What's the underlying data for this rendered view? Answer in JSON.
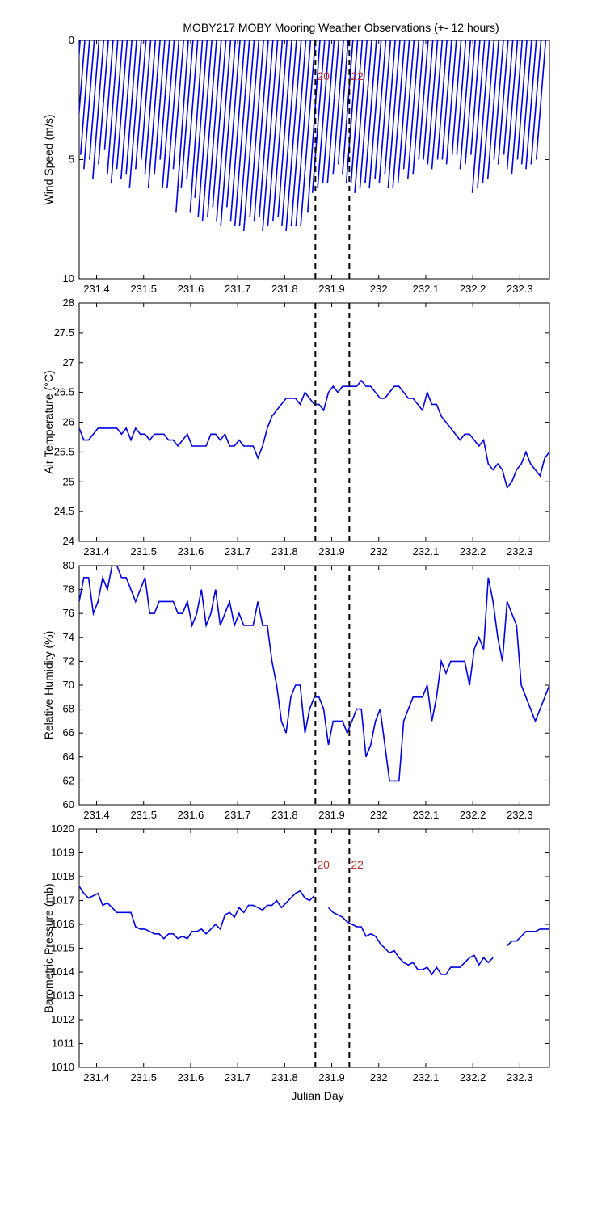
{
  "title": "MOBY217 MOBY Mooring Weather Observations (+- 12 hours)",
  "xlabel": "Julian Day",
  "x_ticks": [
    "231.4",
    "231.5",
    "231.6",
    "231.7",
    "231.8",
    "231.9",
    "232",
    "232.1",
    "232.2",
    "232.3"
  ],
  "x_tick_values": [
    231.4,
    231.5,
    231.6,
    231.7,
    231.8,
    231.9,
    232.0,
    232.1,
    232.2,
    232.3
  ],
  "xlim": [
    231.363,
    232.363
  ],
  "markers": [
    {
      "x": 231.8653,
      "label": "20"
    },
    {
      "x": 231.9375,
      "label": "22"
    }
  ],
  "colors": {
    "series": "#0000e0",
    "marker_line": "#000000",
    "marker_label": "#c03030"
  },
  "chart_data": [
    {
      "type": "line",
      "id": "wind",
      "subtype": "wind-vector-sticks",
      "ylabel": "Wind Speed (m/s)",
      "ylim": [
        0,
        10
      ],
      "y_reversed": true,
      "y_ticks": [
        0,
        5,
        10
      ],
      "x": [
        231.365,
        231.375,
        231.385,
        231.395,
        231.405,
        231.415,
        231.425,
        231.435,
        231.445,
        231.455,
        231.465,
        231.475,
        231.485,
        231.495,
        231.505,
        231.515,
        231.525,
        231.535,
        231.545,
        231.555,
        231.565,
        231.575,
        231.585,
        231.595,
        231.605,
        231.615,
        231.625,
        231.635,
        231.645,
        231.655,
        231.665,
        231.675,
        231.685,
        231.695,
        231.705,
        231.715,
        231.725,
        231.735,
        231.745,
        231.755,
        231.765,
        231.775,
        231.785,
        231.795,
        231.805,
        231.815,
        231.825,
        231.835,
        231.845,
        231.855,
        231.865,
        231.875,
        231.885,
        231.895,
        231.905,
        231.915,
        231.925,
        231.935,
        231.945,
        231.955,
        231.965,
        231.975,
        231.985,
        231.995,
        232.005,
        232.015,
        232.025,
        232.035,
        232.045,
        232.055,
        232.065,
        232.075,
        232.085,
        232.095,
        232.105,
        232.115,
        232.125,
        232.135,
        232.145,
        232.155,
        232.165,
        232.175,
        232.185,
        232.195,
        232.205,
        232.215,
        232.225,
        232.235,
        232.245,
        232.255,
        232.265,
        232.275,
        232.285,
        232.295,
        232.305,
        232.315,
        232.325,
        232.335,
        232.345,
        232.355
      ],
      "speed": [
        5.6,
        5.2,
        4.8,
        5.4,
        5.0,
        5.8,
        5.2,
        4.6,
        5.6,
        6.0,
        5.4,
        5.8,
        5.6,
        6.2,
        5.4,
        5.0,
        5.6,
        6.2,
        5.6,
        5.0,
        6.2,
        6.2,
        5.4,
        7.2,
        6.2,
        5.8,
        7.2,
        6.6,
        7.4,
        7.6,
        7.4,
        7.0,
        7.6,
        7.8,
        7.0,
        7.6,
        7.8,
        7.8,
        8.0,
        7.4,
        7.6,
        7.4,
        8.0,
        7.8,
        7.6,
        7.4,
        7.8,
        8.0,
        7.8,
        7.8,
        7.8,
        7.2,
        6.4,
        6.2,
        6.0,
        6.0,
        5.6,
        5.2,
        5.6,
        6.0,
        6.0,
        6.4,
        6.2,
        6.0,
        6.2,
        5.8,
        6.0,
        5.6,
        6.2,
        6.2,
        6.0,
        5.4,
        5.8,
        5.6,
        5.0,
        5.0,
        5.2,
        5.4,
        5.0,
        5.0,
        5.2,
        4.8,
        4.8,
        5.4,
        5.2,
        4.8,
        6.4,
        6.2,
        6.0,
        5.8,
        5.0,
        5.2,
        4.8,
        5.4,
        5.6,
        5.0,
        5.2,
        5.4,
        5.2,
        5.0
      ],
      "dx": [
        0.022,
        0.021,
        0.019,
        0.022,
        0.02,
        0.023,
        0.021,
        0.018,
        0.022,
        0.024,
        0.022,
        0.023,
        0.022,
        0.025,
        0.022,
        0.02,
        0.022,
        0.025,
        0.022,
        0.02,
        0.025,
        0.025,
        0.022,
        0.026,
        0.025,
        0.023,
        0.026,
        0.026,
        0.029,
        0.03,
        0.029,
        0.028,
        0.03,
        0.031,
        0.028,
        0.03,
        0.031,
        0.031,
        0.032,
        0.029,
        0.03,
        0.029,
        0.032,
        0.031,
        0.03,
        0.029,
        0.031,
        0.032,
        0.031,
        0.031,
        0.031,
        0.026,
        0.026,
        0.025,
        0.024,
        0.024,
        0.022,
        0.021,
        0.022,
        0.024,
        0.024,
        0.026,
        0.025,
        0.024,
        0.025,
        0.023,
        0.024,
        0.022,
        0.025,
        0.025,
        0.024,
        0.022,
        0.023,
        0.022,
        0.02,
        0.02,
        0.021,
        0.022,
        0.02,
        0.02,
        0.021,
        0.019,
        0.019,
        0.022,
        0.021,
        0.019,
        0.026,
        0.025,
        0.024,
        0.023,
        0.02,
        0.021,
        0.019,
        0.022,
        0.022,
        0.02,
        0.021,
        0.022,
        0.021,
        0.02
      ]
    },
    {
      "type": "line",
      "id": "air-temp",
      "ylabel": "Air Temperature (°C)",
      "ylim": [
        24,
        28
      ],
      "y_ticks": [
        "24",
        "24.5",
        "25",
        "25.5",
        "26",
        "26.5",
        "27",
        "27.5",
        "28"
      ],
      "y_tick_values": [
        24,
        24.5,
        25,
        25.5,
        26,
        26.5,
        27,
        27.5,
        28
      ],
      "x": [
        231.363,
        231.373,
        231.383,
        231.393,
        231.403,
        231.413,
        231.423,
        231.433,
        231.443,
        231.453,
        231.463,
        231.473,
        231.483,
        231.493,
        231.503,
        231.513,
        231.523,
        231.533,
        231.543,
        231.553,
        231.563,
        231.573,
        231.583,
        231.593,
        231.603,
        231.613,
        231.623,
        231.633,
        231.643,
        231.653,
        231.663,
        231.673,
        231.683,
        231.693,
        231.703,
        231.713,
        231.723,
        231.733,
        231.743,
        231.753,
        231.763,
        231.773,
        231.783,
        231.793,
        231.803,
        231.813,
        231.823,
        231.833,
        231.843,
        231.853,
        231.863,
        231.873,
        231.883,
        231.893,
        231.903,
        231.913,
        231.923,
        231.933,
        231.943,
        231.953,
        231.963,
        231.973,
        231.983,
        231.993,
        232.003,
        232.013,
        232.023,
        232.033,
        232.043,
        232.053,
        232.063,
        232.073,
        232.083,
        232.093,
        232.103,
        232.113,
        232.123,
        232.133,
        232.143,
        232.153,
        232.163,
        232.173,
        232.183,
        232.193,
        232.203,
        232.213,
        232.223,
        232.233,
        232.243,
        232.253,
        232.263,
        232.273,
        232.283,
        232.293,
        232.303,
        232.313,
        232.323,
        232.333,
        232.343,
        232.353,
        232.363
      ],
      "y": [
        25.9,
        25.7,
        25.7,
        25.8,
        25.9,
        25.9,
        25.9,
        25.9,
        25.9,
        25.8,
        25.9,
        25.7,
        25.9,
        25.8,
        25.8,
        25.7,
        25.8,
        25.8,
        25.8,
        25.7,
        25.7,
        25.6,
        25.7,
        25.8,
        25.6,
        25.6,
        25.6,
        25.6,
        25.8,
        25.8,
        25.7,
        25.8,
        25.6,
        25.6,
        25.7,
        25.6,
        25.6,
        25.6,
        25.4,
        25.6,
        25.9,
        26.1,
        26.2,
        26.3,
        26.4,
        26.4,
        26.4,
        26.3,
        26.5,
        26.4,
        26.3,
        26.3,
        26.2,
        26.5,
        26.6,
        26.5,
        26.6,
        26.6,
        26.6,
        26.6,
        26.7,
        26.6,
        26.6,
        26.5,
        26.4,
        26.4,
        26.5,
        26.6,
        26.6,
        26.5,
        26.4,
        26.4,
        26.3,
        26.2,
        26.5,
        26.3,
        26.3,
        26.1,
        26.0,
        25.9,
        25.8,
        25.7,
        25.8,
        25.8,
        25.7,
        25.6,
        25.7,
        25.3,
        25.2,
        25.3,
        25.2,
        24.9,
        25.0,
        25.2,
        25.3,
        25.5,
        25.3,
        25.2,
        25.1,
        25.4,
        25.5
      ]
    },
    {
      "type": "line",
      "id": "humidity",
      "ylabel": "Relative Humidity (%)",
      "ylim": [
        60,
        80
      ],
      "y_ticks": [
        "60",
        "62",
        "64",
        "66",
        "68",
        "70",
        "72",
        "74",
        "76",
        "78",
        "80"
      ],
      "y_tick_values": [
        60,
        62,
        64,
        66,
        68,
        70,
        72,
        74,
        76,
        78,
        80
      ],
      "x": [
        231.363,
        231.373,
        231.383,
        231.393,
        231.403,
        231.413,
        231.423,
        231.433,
        231.443,
        231.453,
        231.463,
        231.473,
        231.483,
        231.493,
        231.503,
        231.513,
        231.523,
        231.533,
        231.543,
        231.553,
        231.563,
        231.573,
        231.583,
        231.593,
        231.603,
        231.613,
        231.623,
        231.633,
        231.643,
        231.653,
        231.663,
        231.673,
        231.683,
        231.693,
        231.703,
        231.713,
        231.723,
        231.733,
        231.743,
        231.753,
        231.763,
        231.773,
        231.783,
        231.793,
        231.803,
        231.813,
        231.823,
        231.833,
        231.843,
        231.853,
        231.863,
        231.873,
        231.883,
        231.893,
        231.903,
        231.913,
        231.923,
        231.933,
        231.943,
        231.953,
        231.963,
        231.973,
        231.983,
        231.993,
        232.003,
        232.013,
        232.023,
        232.033,
        232.043,
        232.053,
        232.063,
        232.073,
        232.083,
        232.093,
        232.103,
        232.113,
        232.123,
        232.133,
        232.143,
        232.153,
        232.163,
        232.173,
        232.183,
        232.193,
        232.203,
        232.213,
        232.223,
        232.233,
        232.243,
        232.253,
        232.263,
        232.273,
        232.283,
        232.293,
        232.303,
        232.313,
        232.323,
        232.333,
        232.343,
        232.353,
        232.363
      ],
      "y": [
        77,
        79,
        79,
        76,
        77,
        79,
        78,
        80,
        80,
        79,
        79,
        78,
        77,
        78,
        79,
        76,
        76,
        77,
        77,
        77,
        77,
        76,
        76,
        77,
        75,
        76,
        78,
        75,
        76,
        78,
        75,
        76,
        77,
        75,
        76,
        75,
        75,
        75,
        77,
        75,
        75,
        72,
        70,
        67,
        66,
        69,
        70,
        70,
        66,
        68,
        69,
        69,
        68,
        65,
        67,
        67,
        67,
        66,
        67,
        68,
        68,
        64,
        65,
        67,
        68,
        65,
        62,
        62,
        62,
        67,
        68,
        69,
        69,
        69,
        70,
        67,
        69,
        72,
        71,
        72,
        72,
        72,
        72,
        70,
        73,
        74,
        73,
        79,
        77,
        74,
        72,
        77,
        76,
        75,
        70,
        69,
        68,
        67,
        68,
        69,
        70
      ]
    },
    {
      "type": "line",
      "id": "pressure",
      "ylabel": "Barometric Pressure (mb)",
      "ylim": [
        1010,
        1020
      ],
      "y_ticks": [
        "1010",
        "1011",
        "1012",
        "1013",
        "1014",
        "1015",
        "1016",
        "1017",
        "1018",
        "1019",
        "1020"
      ],
      "y_tick_values": [
        1010,
        1011,
        1012,
        1013,
        1014,
        1015,
        1016,
        1017,
        1018,
        1019,
        1020
      ],
      "x": [
        231.363,
        231.373,
        231.383,
        231.393,
        231.403,
        231.413,
        231.423,
        231.433,
        231.443,
        231.453,
        231.463,
        231.473,
        231.483,
        231.493,
        231.503,
        231.513,
        231.523,
        231.533,
        231.543,
        231.553,
        231.563,
        231.573,
        231.583,
        231.593,
        231.603,
        231.613,
        231.623,
        231.633,
        231.643,
        231.653,
        231.663,
        231.673,
        231.683,
        231.693,
        231.703,
        231.713,
        231.723,
        231.733,
        231.743,
        231.753,
        231.763,
        231.773,
        231.783,
        231.793,
        231.803,
        231.813,
        231.823,
        231.833,
        231.843,
        231.853,
        231.863,
        231.873,
        231.883,
        231.893,
        231.903,
        231.913,
        231.923,
        231.933,
        231.943,
        231.953,
        231.963,
        231.973,
        231.983,
        231.993,
        232.003,
        232.013,
        232.023,
        232.033,
        232.043,
        232.053,
        232.063,
        232.073,
        232.083,
        232.093,
        232.103,
        232.113,
        232.123,
        232.133,
        232.143,
        232.153,
        232.163,
        232.173,
        232.183,
        232.193,
        232.203,
        232.213,
        232.223,
        232.233,
        232.243,
        232.253,
        232.263,
        232.273,
        232.283,
        232.293,
        232.303,
        232.313,
        232.323,
        232.333,
        232.343,
        232.353,
        232.363
      ],
      "y": [
        1017.6,
        1017.3,
        1017.1,
        1017.2,
        1017.3,
        1016.8,
        1016.9,
        1016.7,
        1016.5,
        1016.5,
        1016.5,
        1016.5,
        1015.9,
        1015.8,
        1015.8,
        1015.7,
        1015.6,
        1015.6,
        1015.4,
        1015.6,
        1015.6,
        1015.4,
        1015.5,
        1015.4,
        1015.7,
        1015.7,
        1015.8,
        1015.6,
        1015.8,
        1016.0,
        1015.8,
        1016.4,
        1016.5,
        1016.3,
        1016.7,
        1016.5,
        1016.8,
        1016.8,
        1016.7,
        1016.6,
        1016.8,
        1016.8,
        1017.0,
        1016.7,
        1016.9,
        1017.1,
        1017.3,
        1017.4,
        1017.1,
        1017.0,
        1017.2,
        null,
        null,
        1016.7,
        1016.5,
        1016.4,
        1016.3,
        1016.1,
        1016.0,
        1015.9,
        1015.9,
        1015.5,
        1015.6,
        1015.5,
        1015.2,
        1015.0,
        1014.8,
        1014.9,
        1014.6,
        1014.4,
        1014.3,
        1014.4,
        1014.1,
        1014.1,
        1014.2,
        1013.9,
        1014.2,
        1013.9,
        1013.9,
        1014.2,
        1014.2,
        1014.2,
        1014.4,
        1014.6,
        1014.7,
        1014.3,
        1014.6,
        1014.4,
        1014.6,
        null,
        null,
        1015.1,
        1015.3,
        1015.3,
        1015.5,
        1015.7,
        1015.7,
        1015.7,
        1015.8,
        1015.8,
        1015.8
      ]
    }
  ]
}
